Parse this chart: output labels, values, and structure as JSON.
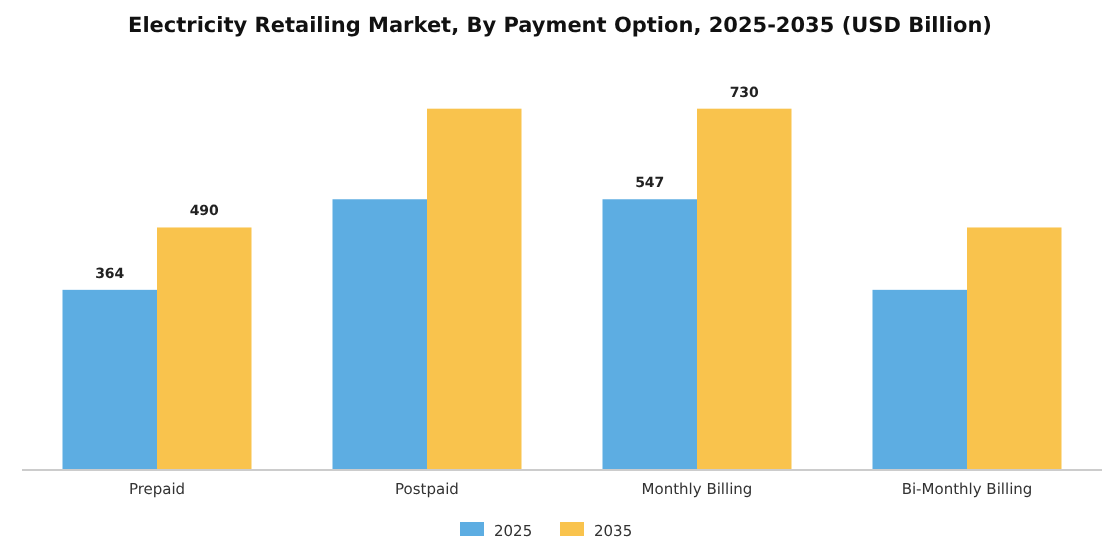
{
  "chart_data": {
    "type": "bar",
    "title": "Electricity Retailing Market, By Payment Option, 2025-2035 (USD Billion)",
    "categories": [
      "Prepaid",
      "Postpaid",
      "Monthly Billing",
      "Bi-Monthly Billing"
    ],
    "series": [
      {
        "name": "2025",
        "color": "#5dade2",
        "values": [
          364,
          547,
          547,
          364
        ],
        "value_labels": [
          "364",
          null,
          "547",
          null
        ]
      },
      {
        "name": "2035",
        "color": "#f9c34d",
        "values": [
          490,
          730,
          730,
          490
        ],
        "value_labels": [
          "490",
          null,
          "730",
          null
        ]
      }
    ],
    "legend": "bottom",
    "grid": false
  }
}
